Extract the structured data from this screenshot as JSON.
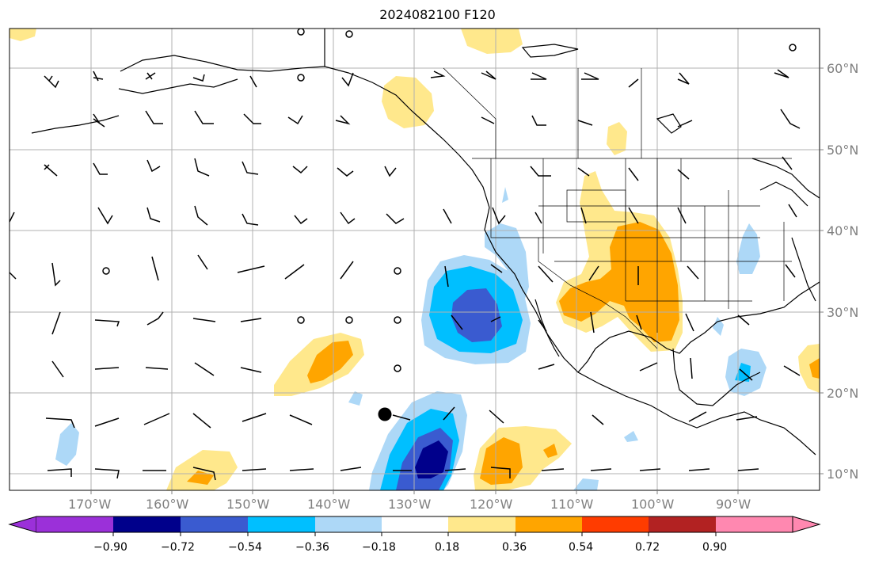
{
  "title": "2024082100 F120",
  "lat_labels": [
    "60°N",
    "50°N",
    "40°N",
    "30°N",
    "20°N",
    "10°N"
  ],
  "lon_labels": [
    "170°W",
    "160°W",
    "150°W",
    "140°W",
    "130°W",
    "120°W",
    "110°W",
    "100°W",
    "90°W"
  ],
  "colorbar": {
    "ticks": [
      "−0.90",
      "−0.72",
      "−0.54",
      "−0.36",
      "−0.18",
      "0.18",
      "0.36",
      "0.54",
      "0.72",
      "0.90"
    ],
    "colors": [
      "#9b30d9",
      "#00008b",
      "#3a5bd0",
      "#00bfff",
      "#add8f7",
      "#ffffff",
      "#ffe88c",
      "#ffa500",
      "#ff3c00",
      "#b22222",
      "#ff88b0"
    ]
  },
  "field_colors": {
    "neg_strong": "#00008b",
    "neg_medium": "#3a5bd0",
    "neg_mid": "#00bfff",
    "neg_weak": "#add8f7",
    "pos_weak": "#ffe88c",
    "pos_mid": "#ffa500"
  },
  "markers": {
    "storm_center_color": "#000000"
  }
}
